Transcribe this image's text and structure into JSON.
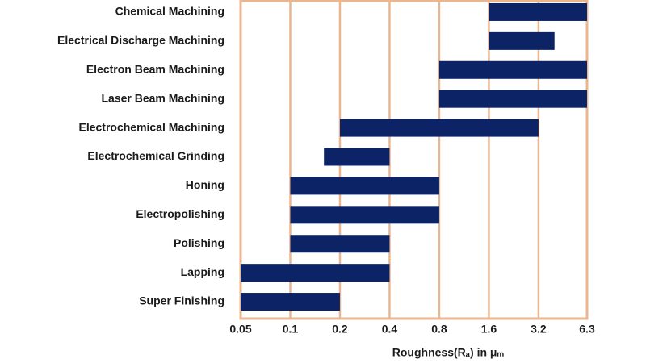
{
  "chart_data": {
    "type": "floating-bar",
    "categories": [
      "Chemical Machining",
      "Electrical Discharge Machining",
      "Electron Beam Machining",
      "Laser Beam Machining",
      "Electrochemical Machining",
      "Electrochemical Grinding",
      "Honing",
      "Electropolishing",
      "Polishing",
      "Lapping",
      "Super Finishing"
    ],
    "values": [
      [
        1.6,
        6.3
      ],
      [
        1.6,
        4
      ],
      [
        0.8,
        6.3
      ],
      [
        0.8,
        6.3
      ],
      [
        0.2,
        3.2
      ],
      [
        0.16,
        0.4
      ],
      [
        0.1,
        0.8
      ],
      [
        0.1,
        0.8
      ],
      [
        0.1,
        0.4
      ],
      [
        0.05,
        0.4
      ],
      [
        0.05,
        0.2
      ]
    ],
    "color": "#0c2466",
    "x_label": "Roughness(Rₐ) in μₘ",
    "xlim": [
      0.05,
      6.3
    ],
    "xticks": [
      0.05,
      0.1,
      0.2,
      0.4,
      0.8,
      1.6,
      3.2,
      6.3
    ],
    "x_log": true,
    "grid": true,
    "grid_color": "#e9b690"
  }
}
